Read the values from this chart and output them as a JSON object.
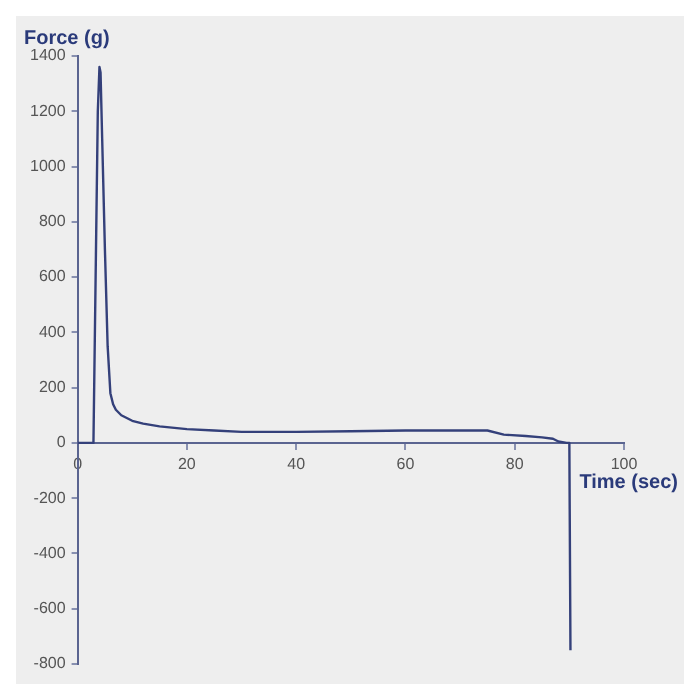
{
  "chart_data": {
    "type": "line",
    "xlabel": "Time (sec)",
    "ylabel": "Force (g)",
    "x": [
      0,
      2.9,
      3.3,
      3.7,
      4.0,
      4.2,
      4.5,
      5.0,
      5.5,
      6.0,
      6.5,
      7.0,
      8.0,
      9.0,
      10,
      12,
      15,
      20,
      25,
      30,
      40,
      50,
      60,
      70,
      75,
      78,
      82,
      85,
      87,
      88,
      89.5,
      90,
      90.2,
      90.3
    ],
    "series": [
      {
        "color": "#34407a",
        "values": [
          0,
          0,
          600,
          1200,
          1360,
          1340,
          1100,
          700,
          350,
          180,
          140,
          120,
          100,
          90,
          80,
          70,
          60,
          50,
          45,
          40,
          40,
          42,
          45,
          45,
          45,
          30,
          25,
          20,
          15,
          5,
          0,
          0,
          -750,
          -750
        ]
      }
    ],
    "xlim": [
      0,
      100
    ],
    "xticks": [
      0,
      20,
      40,
      60,
      80,
      100
    ],
    "ylim": [
      -800,
      1400
    ],
    "yticks": [
      -800,
      -600,
      -400,
      -200,
      0,
      200,
      400,
      600,
      800,
      1000,
      1200,
      1400
    ],
    "grid": false,
    "legend": false,
    "marker": "none",
    "line_style": "solid"
  }
}
